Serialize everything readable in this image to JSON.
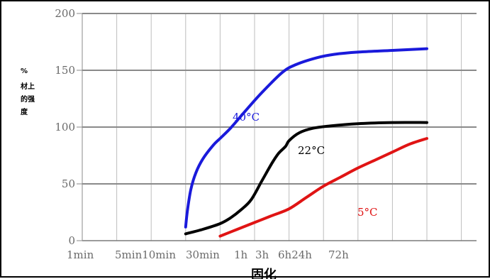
{
  "chart_data": {
    "type": "line",
    "xlabel": "固化",
    "ylabel_lines": [
      "%",
      "材上",
      "的强",
      "度"
    ],
    "y_ticks": [
      "0",
      "50",
      "100",
      "150",
      "200"
    ],
    "ylim": [
      0,
      200
    ],
    "x_ticks": [
      "1min",
      "5min",
      "10min",
      "30min",
      "1h",
      "3h",
      "6h",
      "24h",
      "72h"
    ],
    "x_tick_label_text": [
      "1min",
      "5min10min",
      "30min",
      "1h",
      "3h",
      "6h24h",
      "72h"
    ],
    "x_categories_index": [
      0,
      1,
      2,
      3,
      4,
      5,
      6,
      7,
      8
    ],
    "grid": true,
    "series": [
      {
        "name": "40°C",
        "color": "#1a1adb",
        "x": [
          3.0,
          3.05,
          3.15,
          3.3,
          3.5,
          3.8,
          4.0,
          4.3,
          4.7,
          5.2,
          5.8,
          6.2,
          6.8,
          7.3,
          8.0,
          9.0,
          10.0
        ],
        "values": [
          12,
          26,
          45,
          60,
          72,
          84,
          90,
          99,
          113,
          130,
          148,
          155,
          161,
          164,
          166,
          167.5,
          169
        ]
      },
      {
        "name": "22°C",
        "color": "#000000",
        "x": [
          3.0,
          3.5,
          4.0,
          4.3,
          4.6,
          4.9,
          5.2,
          5.5,
          5.7,
          5.9,
          6.0,
          6.3,
          6.7,
          7.2,
          8.0,
          9.0,
          10.0
        ],
        "values": [
          6,
          10,
          15,
          20,
          27,
          36,
          52,
          68,
          77,
          83,
          88,
          95,
          99,
          101,
          103,
          104,
          104
        ]
      },
      {
        "name": "5°C",
        "color": "#e01414",
        "x": [
          4.0,
          4.5,
          5.0,
          5.5,
          6.0,
          6.5,
          7.0,
          7.5,
          8.0,
          8.5,
          9.0,
          9.5,
          10.0
        ],
        "values": [
          4,
          10,
          16,
          22,
          28,
          38,
          48,
          56,
          64,
          71,
          78,
          85,
          90
        ]
      }
    ]
  }
}
